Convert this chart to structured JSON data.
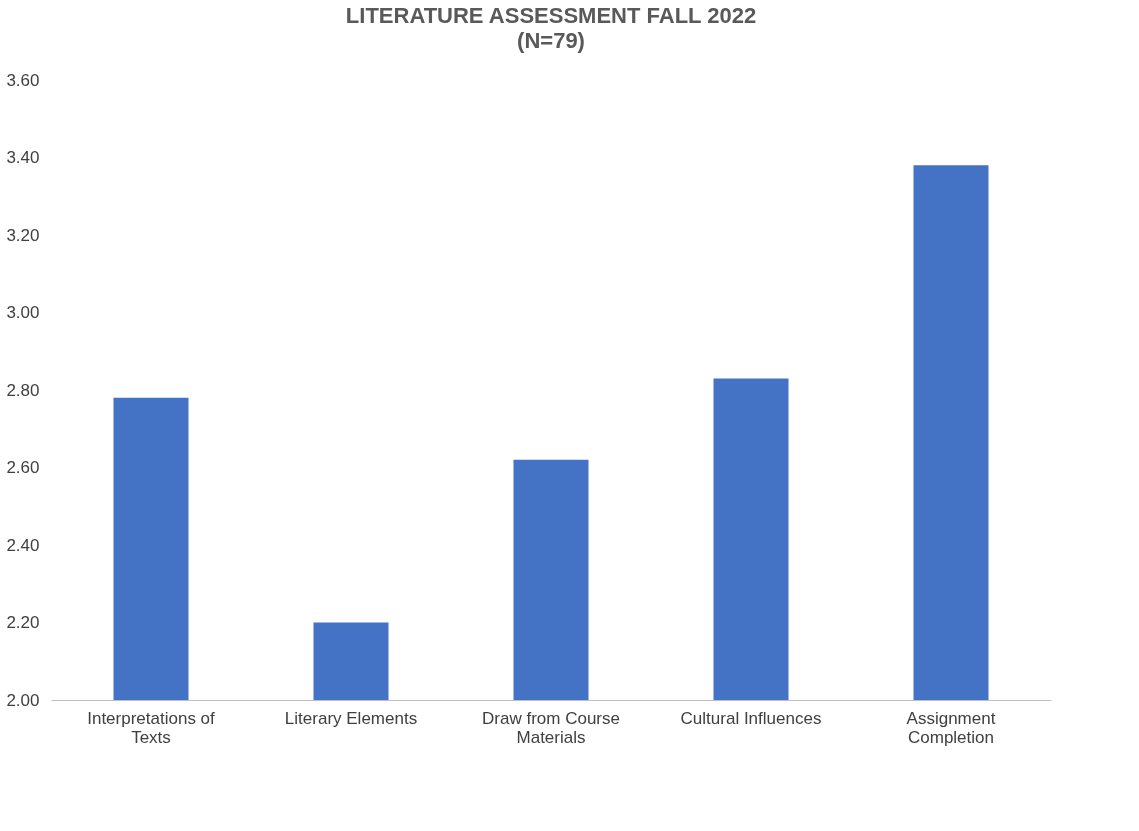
{
  "chart_data": {
    "type": "bar",
    "title": "LITERATURE ASSESSMENT FALL 2022",
    "subtitle": "(N=79)",
    "categories": [
      "Interpretations of Texts",
      "Literary Elements",
      "Draw from Course Materials",
      "Cultural Influences",
      "Assignment Completion"
    ],
    "values": [
      2.78,
      2.2,
      2.62,
      2.83,
      3.38
    ],
    "color": "#4472c4",
    "ylim": [
      2.0,
      3.6
    ],
    "yticks": [
      {
        "value": 2.0,
        "label": "2.00"
      },
      {
        "value": 2.2,
        "label": "2.20"
      },
      {
        "value": 2.4,
        "label": "2.40"
      },
      {
        "value": 2.6,
        "label": "2.60"
      },
      {
        "value": 2.8,
        "label": "2.80"
      },
      {
        "value": 3.0,
        "label": "3.00"
      },
      {
        "value": 3.2,
        "label": "3.20"
      },
      {
        "value": 3.4,
        "label": "3.40"
      },
      {
        "value": 3.6,
        "label": "3.60"
      }
    ],
    "grid": false
  }
}
